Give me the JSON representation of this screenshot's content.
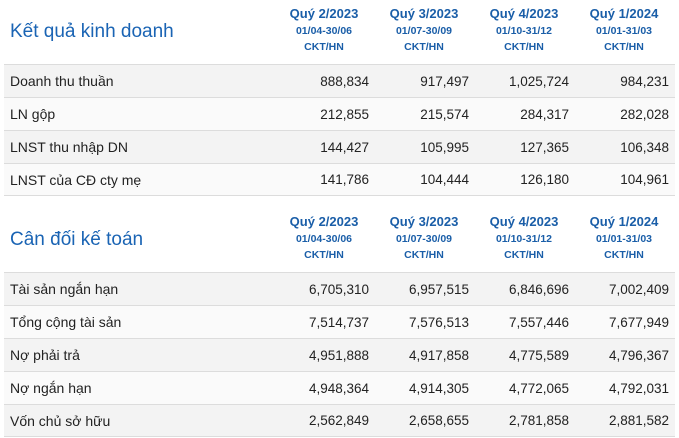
{
  "columns": [
    {
      "quarter": "Quý 2/2023",
      "dates": "01/04-30/06",
      "unit": "CKT/HN"
    },
    {
      "quarter": "Quý 3/2023",
      "dates": "01/07-30/09",
      "unit": "CKT/HN"
    },
    {
      "quarter": "Quý 4/2023",
      "dates": "01/10-31/12",
      "unit": "CKT/HN"
    },
    {
      "quarter": "Quý 1/2024",
      "dates": "01/01-31/03",
      "unit": "CKT/HN"
    }
  ],
  "business_results": {
    "title": "Kết quả kinh doanh",
    "rows": [
      {
        "label": "Doanh thu thuần",
        "values": [
          "888,834",
          "917,497",
          "1,025,724",
          "984,231"
        ]
      },
      {
        "label": "LN gộp",
        "values": [
          "212,855",
          "215,574",
          "284,317",
          "282,028"
        ]
      },
      {
        "label": "LNST thu nhập DN",
        "values": [
          "144,427",
          "105,995",
          "127,365",
          "106,348"
        ]
      },
      {
        "label": "LNST của CĐ cty mẹ",
        "values": [
          "141,786",
          "104,444",
          "126,180",
          "104,961"
        ]
      }
    ]
  },
  "balance_sheet": {
    "title": "Cân đối kế toán",
    "rows": [
      {
        "label": "Tài sản ngắn hạn",
        "values": [
          "6,705,310",
          "6,957,515",
          "6,846,696",
          "7,002,409"
        ]
      },
      {
        "label": "Tổng cộng tài sản",
        "values": [
          "7,514,737",
          "7,576,513",
          "7,557,446",
          "7,677,949"
        ]
      },
      {
        "label": "Nợ phải trả",
        "values": [
          "4,951,888",
          "4,917,858",
          "4,775,589",
          "4,796,367"
        ]
      },
      {
        "label": "Nợ ngắn hạn",
        "values": [
          "4,948,364",
          "4,914,305",
          "4,772,065",
          "4,792,031"
        ]
      },
      {
        "label": "Vốn chủ sở hữu",
        "values": [
          "2,562,849",
          "2,658,655",
          "2,781,858",
          "2,881,582"
        ]
      }
    ]
  },
  "colors": {
    "heading": "#1a64b4",
    "row_bg": "#f3f3f3",
    "border": "#dcdcdc"
  }
}
